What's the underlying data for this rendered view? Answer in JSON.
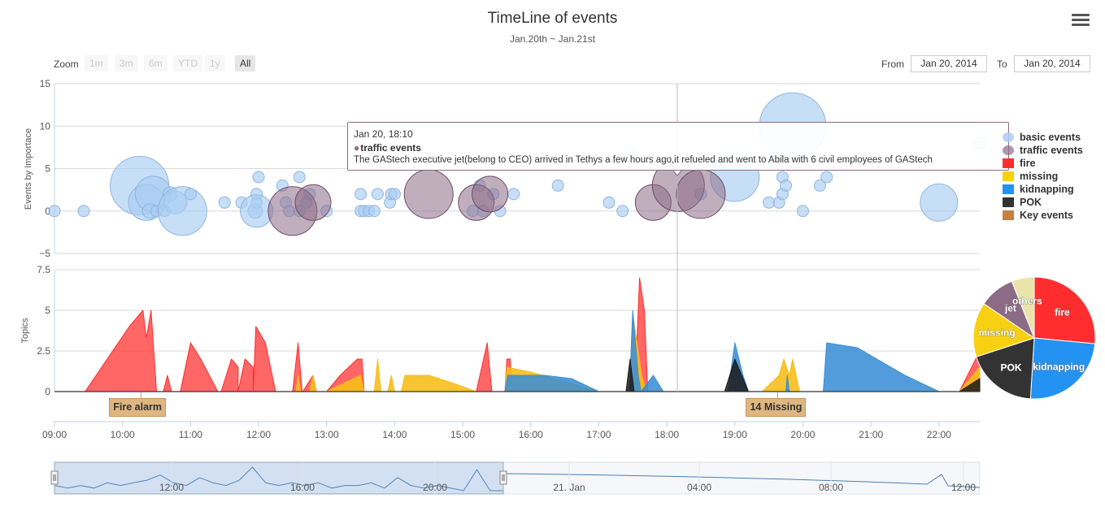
{
  "title": "TimeLine of events",
  "subtitle": "Jan.20th ~ Jan.21st",
  "menu": {
    "icon": "hamburger-menu-icon"
  },
  "zoom": {
    "label": "Zoom",
    "buttons": [
      {
        "label": "1m",
        "active": false
      },
      {
        "label": "3m",
        "active": false
      },
      {
        "label": "6m",
        "active": false
      },
      {
        "label": "YTD",
        "active": false
      },
      {
        "label": "1y",
        "active": false
      },
      {
        "label": "All",
        "active": true
      }
    ]
  },
  "range": {
    "from_label": "From",
    "from_value": "Jan 20, 2014",
    "to_label": "To",
    "to_value": "Jan 20, 2014"
  },
  "tooltip": {
    "date": "Jan 20, 18:10",
    "series": "traffic events",
    "text": "The GAStech executive jet(belong to CEO) arrived in Tethys a few hours ago,it refueled and went to Abila with 6 civil employees of GAStech"
  },
  "flags": [
    {
      "label": "Fire alarm",
      "x": 10.27
    },
    {
      "label": "14 Missing",
      "x": 19.63
    }
  ],
  "chart_data": [
    {
      "type": "scatter",
      "subtype": "bubble",
      "ylabel": "Events by Importace",
      "ylim": [
        -5,
        15
      ],
      "yticks": [
        "15",
        "10",
        "5",
        "0",
        "−5"
      ],
      "xlim": [
        9.0,
        22.6
      ],
      "grid": true,
      "series": [
        {
          "name": "basic events",
          "color": "#a9cdf2",
          "points": [
            [
              9.0,
              0,
              7
            ],
            [
              9.43,
              0,
              7
            ],
            [
              10.25,
              3,
              36
            ],
            [
              10.35,
              1,
              22
            ],
            [
              10.45,
              2,
              22
            ],
            [
              10.4,
              0,
              9
            ],
            [
              10.5,
              0,
              7
            ],
            [
              10.62,
              0,
              7
            ],
            [
              10.7,
              2,
              9
            ],
            [
              10.78,
              1,
              14
            ],
            [
              10.88,
              0,
              30
            ],
            [
              11.0,
              2,
              7
            ],
            [
              11.5,
              1,
              7
            ],
            [
              11.75,
              1,
              7
            ],
            [
              11.95,
              0,
              9
            ],
            [
              11.97,
              1,
              7
            ],
            [
              11.97,
              2,
              7
            ],
            [
              11.97,
              0,
              20
            ],
            [
              12.0,
              4,
              7
            ],
            [
              12.35,
              3,
              7
            ],
            [
              12.4,
              1,
              7
            ],
            [
              12.45,
              0,
              7
            ],
            [
              12.6,
              4,
              7
            ],
            [
              12.6,
              0,
              7
            ],
            [
              12.7,
              1,
              7
            ],
            [
              12.75,
              2,
              7
            ],
            [
              13.0,
              0,
              7
            ],
            [
              13.5,
              2,
              7
            ],
            [
              13.5,
              0,
              7
            ],
            [
              13.55,
              0,
              7
            ],
            [
              13.62,
              0,
              7
            ],
            [
              13.7,
              0,
              7
            ],
            [
              13.75,
              2,
              7
            ],
            [
              13.93,
              1,
              7
            ],
            [
              13.95,
              2,
              7
            ],
            [
              14.0,
              2,
              7
            ],
            [
              15.15,
              0,
              7
            ],
            [
              15.25,
              3,
              7
            ],
            [
              15.3,
              0,
              7
            ],
            [
              15.45,
              2,
              7
            ],
            [
              15.55,
              0,
              7
            ],
            [
              15.75,
              2,
              7
            ],
            [
              16.4,
              3,
              7
            ],
            [
              17.15,
              1,
              7
            ],
            [
              17.35,
              0,
              7
            ],
            [
              17.45,
              7,
              7
            ],
            [
              18.5,
              2,
              7
            ],
            [
              19.0,
              4,
              30
            ],
            [
              19.5,
              1,
              7
            ],
            [
              19.65,
              1,
              7
            ],
            [
              19.7,
              2,
              7
            ],
            [
              19.7,
              4,
              7
            ],
            [
              19.75,
              3,
              7
            ],
            [
              19.85,
              10,
              41
            ],
            [
              20.0,
              0,
              7
            ],
            [
              20.25,
              3,
              7
            ],
            [
              20.35,
              4,
              7
            ],
            [
              22.0,
              1,
              23
            ],
            [
              22.6,
              8,
              7
            ]
          ]
        },
        {
          "name": "traffic events",
          "color": "#8c6b86",
          "points": [
            [
              12.5,
              0,
              30
            ],
            [
              12.8,
              1,
              22
            ],
            [
              14.5,
              2,
              30
            ],
            [
              15.2,
              1,
              22
            ],
            [
              15.4,
              2,
              22
            ],
            [
              17.8,
              1,
              22
            ],
            [
              18.17,
              3,
              32
            ],
            [
              18.5,
              2,
              30
            ]
          ]
        }
      ],
      "x_tick_labels": [
        "09:00",
        "10:00",
        "11:00",
        "12:00",
        "13:00",
        "14:00",
        "15:00",
        "16:00",
        "17:00",
        "18:00",
        "19:00",
        "20:00",
        "21:00",
        "22:00"
      ]
    },
    {
      "type": "area",
      "ylabel": "Topics",
      "ylim": [
        0,
        7.5
      ],
      "yticks": [
        "7.5",
        "5",
        "2.5",
        "0"
      ],
      "xlim": [
        9.0,
        22.6
      ],
      "xlabel": "",
      "x_tick_labels": [
        "09:00",
        "10:00",
        "11:00",
        "12:00",
        "13:00",
        "14:00",
        "15:00",
        "16:00",
        "17:00",
        "18:00",
        "19:00",
        "20:00",
        "21:00",
        "22:00"
      ],
      "series": [
        {
          "name": "fire",
          "color": "#ff2d2d",
          "opacity": 0.72,
          "points": [
            [
              9.45,
              0
            ],
            [
              10.1,
              4
            ],
            [
              10.3,
              5
            ],
            [
              10.35,
              3.3
            ],
            [
              10.42,
              5
            ],
            [
              10.5,
              0
            ],
            [
              10.5,
              0
            ],
            [
              10.5,
              0
            ],
            [
              10.6,
              0
            ],
            [
              10.66,
              1
            ],
            [
              10.72,
              0
            ],
            [
              10.85,
              0
            ],
            [
              10.9,
              1
            ],
            [
              11.0,
              3
            ],
            [
              11.15,
              2
            ],
            [
              11.4,
              0
            ],
            [
              11.45,
              0
            ],
            [
              11.6,
              2
            ],
            [
              11.7,
              1.5
            ],
            [
              11.7,
              0
            ],
            [
              11.8,
              2
            ],
            [
              11.92,
              1.5
            ],
            [
              11.92,
              0
            ],
            [
              11.96,
              4
            ],
            [
              12.1,
              3
            ],
            [
              12.25,
              0
            ],
            [
              12.5,
              0
            ],
            [
              12.58,
              3
            ],
            [
              12.64,
              0
            ],
            [
              12.65,
              0
            ],
            [
              12.8,
              1
            ],
            [
              12.85,
              0
            ],
            [
              13.0,
              0
            ],
            [
              13.2,
              1
            ],
            [
              13.45,
              2
            ],
            [
              13.52,
              2
            ],
            [
              13.55,
              0
            ],
            [
              15.2,
              0
            ],
            [
              15.36,
              3
            ],
            [
              15.43,
              0
            ],
            [
              15.62,
              0
            ],
            [
              15.65,
              2
            ],
            [
              15.7,
              2
            ],
            [
              15.72,
              0
            ],
            [
              17.5,
              0
            ],
            [
              17.55,
              2
            ],
            [
              17.6,
              7
            ],
            [
              17.67,
              5
            ],
            [
              17.72,
              0
            ],
            [
              22.3,
              0
            ],
            [
              22.6,
              2.5
            ]
          ]
        },
        {
          "name": "missing",
          "color": "#f7be18",
          "opacity": 0.9,
          "points": [
            [
              12.55,
              0
            ],
            [
              12.58,
              1
            ],
            [
              12.62,
              0
            ],
            [
              12.75,
              0
            ],
            [
              12.8,
              1
            ],
            [
              12.85,
              0
            ],
            [
              13.0,
              0
            ],
            [
              13.25,
              0.5
            ],
            [
              13.5,
              1
            ],
            [
              13.55,
              0
            ],
            [
              13.7,
              0
            ],
            [
              13.75,
              2
            ],
            [
              13.8,
              0
            ],
            [
              13.9,
              0
            ],
            [
              13.95,
              1
            ],
            [
              14.0,
              0
            ],
            [
              14.1,
              0
            ],
            [
              14.15,
              1
            ],
            [
              14.5,
              1
            ],
            [
              14.8,
              0.6
            ],
            [
              15.2,
              0
            ],
            [
              15.62,
              0
            ],
            [
              15.65,
              1.5
            ],
            [
              16.0,
              1.2
            ],
            [
              16.6,
              0.5
            ],
            [
              17.0,
              0
            ],
            [
              17.45,
              0
            ],
            [
              17.5,
              4.8
            ],
            [
              17.63,
              1
            ],
            [
              17.7,
              0
            ],
            [
              19.4,
              0
            ],
            [
              19.65,
              1
            ],
            [
              19.72,
              2
            ],
            [
              19.8,
              1
            ],
            [
              19.85,
              2
            ],
            [
              19.95,
              0
            ],
            [
              22.3,
              0
            ],
            [
              22.6,
              1.5
            ]
          ]
        },
        {
          "name": "kidnapping",
          "color": "#3a8ed6",
          "opacity": 0.88,
          "points": [
            [
              15.62,
              0
            ],
            [
              15.66,
              1
            ],
            [
              16.2,
              1
            ],
            [
              16.6,
              0.8
            ],
            [
              17.0,
              0
            ],
            [
              17.45,
              0
            ],
            [
              17.5,
              5
            ],
            [
              17.58,
              1
            ],
            [
              17.62,
              0
            ],
            [
              17.95,
              0
            ],
            [
              17.98,
              0
            ],
            [
              17.8,
              1
            ],
            [
              17.95,
              0
            ],
            [
              18.9,
              0
            ],
            [
              19.0,
              3
            ],
            [
              19.12,
              1
            ],
            [
              19.2,
              0
            ],
            [
              19.75,
              0
            ],
            [
              19.77,
              1
            ],
            [
              19.8,
              0
            ],
            [
              20.3,
              0
            ],
            [
              20.35,
              3
            ],
            [
              20.8,
              2.7
            ],
            [
              21.5,
              1
            ],
            [
              22.0,
              0
            ],
            [
              22.6,
              0
            ]
          ]
        },
        {
          "name": "POK",
          "color": "#1a1a1a",
          "opacity": 0.85,
          "points": [
            [
              17.4,
              0
            ],
            [
              17.46,
              2
            ],
            [
              17.52,
              0
            ],
            [
              18.85,
              0
            ],
            [
              19.0,
              2
            ],
            [
              19.2,
              0
            ],
            [
              22.3,
              0
            ],
            [
              22.6,
              0.8
            ]
          ]
        }
      ]
    },
    {
      "type": "pie",
      "slices": [
        {
          "label": "fire",
          "value": 26.5,
          "color": "#ff2d2d"
        },
        {
          "label": "kidnapping",
          "value": 24.5,
          "color": "#2392f2"
        },
        {
          "label": "POK",
          "value": 19.0,
          "color": "#333333"
        },
        {
          "label": "missing",
          "value": 14.5,
          "color": "#f7d011"
        },
        {
          "label": "jet",
          "value": 9.5,
          "color": "#8c6b86"
        },
        {
          "label": "others",
          "value": 6.0,
          "color": "#eae4aa"
        }
      ]
    },
    {
      "type": "line",
      "role": "navigator",
      "x_tick_labels": [
        "12:00",
        "16:00",
        "20:00",
        "21. Jan",
        "04:00",
        "08:00",
        "12:00"
      ],
      "selected_range": [
        "09:00",
        "22:40"
      ],
      "values": [
        2,
        1,
        2,
        1,
        3,
        2,
        3,
        4,
        6,
        3,
        2,
        5,
        3,
        2,
        4,
        9,
        3,
        2,
        3,
        2,
        3,
        1,
        2,
        2,
        3,
        1,
        5,
        2,
        1,
        2,
        1,
        0,
        8,
        0,
        0
      ]
    }
  ],
  "legend": [
    {
      "label": "basic events",
      "color": "#a9cdf2",
      "shape": "circle"
    },
    {
      "label": "traffic events",
      "color": "#8c6b86",
      "shape": "circle"
    },
    {
      "label": "fire",
      "color": "#ff2d2d",
      "shape": "rect"
    },
    {
      "label": "missing",
      "color": "#f7d011",
      "shape": "rect"
    },
    {
      "label": "kidnapping",
      "color": "#2392f2",
      "shape": "rect"
    },
    {
      "label": "POK",
      "color": "#333333",
      "shape": "rect"
    },
    {
      "label": "Key events",
      "color": "#c8803d",
      "shape": "rect"
    }
  ]
}
